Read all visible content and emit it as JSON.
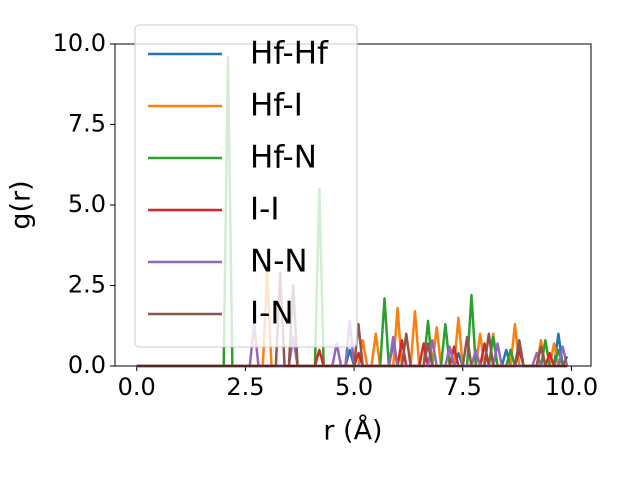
{
  "chart_data": {
    "type": "line",
    "x_label": "r (Å)",
    "y_label": "g(r)",
    "x": [
      0.0,
      0.1,
      0.2,
      0.3,
      0.4,
      0.5,
      0.6,
      0.7,
      0.8,
      0.9,
      1.0,
      1.1,
      1.2,
      1.3,
      1.4,
      1.5,
      1.6,
      1.7,
      1.8,
      1.9,
      2.0,
      2.1,
      2.2,
      2.3,
      2.4,
      2.5,
      2.6,
      2.7,
      2.8,
      2.9,
      3.0,
      3.1,
      3.2,
      3.3,
      3.4,
      3.5,
      3.6,
      3.7,
      3.8,
      3.9,
      4.0,
      4.1,
      4.2,
      4.3,
      4.4,
      4.5,
      4.6,
      4.7,
      4.8,
      4.9,
      5.0,
      5.1,
      5.2,
      5.3,
      5.4,
      5.5,
      5.6,
      5.7,
      5.8,
      5.9,
      6.0,
      6.1,
      6.2,
      6.3,
      6.4,
      6.5,
      6.6,
      6.7,
      6.8,
      6.9,
      7.0,
      7.1,
      7.2,
      7.3,
      7.4,
      7.5,
      7.6,
      7.7,
      7.8,
      7.9,
      8.0,
      8.1,
      8.2,
      8.3,
      8.4,
      8.5,
      8.6,
      8.7,
      8.8,
      8.9,
      9.0,
      9.1,
      9.2,
      9.3,
      9.4,
      9.5,
      9.6,
      9.7,
      9.8,
      9.9
    ],
    "series": [
      {
        "name": "Hf-Hf",
        "color": "#1f77b4",
        "values": [
          0,
          0,
          0,
          0,
          0,
          0,
          0,
          0,
          0,
          0,
          0,
          0,
          0,
          0,
          0,
          0,
          0,
          0,
          0,
          0,
          0,
          0,
          0,
          0,
          0,
          0,
          0,
          0,
          0,
          0,
          0,
          0,
          0,
          0,
          0,
          0,
          0,
          0,
          0,
          0,
          0,
          0,
          0,
          0,
          0,
          0,
          0,
          0,
          0,
          0.5,
          0,
          0,
          0,
          0,
          0,
          0,
          0,
          0,
          0,
          0.7,
          0,
          0,
          0,
          0,
          0,
          0,
          0,
          0,
          0,
          0,
          0,
          0,
          0,
          0,
          0.4,
          0,
          0,
          0,
          0,
          0,
          0,
          0,
          0,
          0,
          0,
          0.5,
          0,
          0,
          0,
          0,
          0,
          0,
          0,
          0,
          0,
          0,
          0,
          1.0,
          0,
          0
        ]
      },
      {
        "name": "Hf-I",
        "color": "#ff7f0e",
        "values": [
          0,
          0,
          0,
          0,
          0,
          0,
          0,
          0,
          0,
          0,
          0,
          0,
          0,
          0,
          0,
          0,
          0,
          0,
          0,
          0,
          0,
          0,
          0,
          0,
          0,
          0,
          0,
          0,
          0,
          0,
          2.9,
          0,
          0,
          0,
          0,
          0,
          0,
          0,
          0,
          0,
          0,
          0,
          0,
          0,
          0,
          0,
          0,
          0,
          0,
          0,
          0,
          0,
          0.8,
          0,
          0,
          1.0,
          0,
          0,
          0,
          0,
          1.8,
          0,
          0,
          0,
          1.7,
          0,
          0,
          0,
          0,
          1.2,
          0,
          0,
          0,
          0,
          1.5,
          0,
          0,
          0,
          0,
          1.0,
          0,
          0,
          1.0,
          0,
          0,
          0,
          0,
          1.3,
          0,
          0,
          0,
          0,
          0,
          0.8,
          0,
          0,
          0.7,
          0,
          0,
          0
        ]
      },
      {
        "name": "Hf-N",
        "color": "#2ca02c",
        "values": [
          0,
          0,
          0,
          0,
          0,
          0,
          0,
          0,
          0,
          0,
          0,
          0,
          0,
          0,
          0,
          0,
          0,
          0,
          0,
          0,
          0,
          9.6,
          0,
          0,
          0,
          0,
          0,
          0,
          0,
          0,
          0,
          0,
          0,
          0,
          0,
          0,
          0,
          0,
          0,
          0,
          0,
          0,
          5.5,
          0,
          0,
          0,
          0,
          0,
          0,
          0,
          0,
          0,
          0,
          0,
          0,
          0,
          0,
          2.1,
          0,
          0,
          0,
          0,
          0,
          0,
          0,
          0,
          0,
          1.4,
          0,
          0,
          0,
          1.3,
          0,
          0,
          0,
          0,
          0,
          2.2,
          0,
          0,
          0,
          0,
          0.9,
          0,
          0,
          0,
          0.5,
          0,
          0,
          0,
          0,
          0,
          0,
          0,
          0.8,
          0,
          0,
          0.5,
          0,
          0
        ]
      },
      {
        "name": "I-I",
        "color": "#d62728",
        "values": [
          0,
          0,
          0,
          0,
          0,
          0,
          0,
          0,
          0,
          0,
          0,
          0,
          0,
          0,
          0,
          0,
          0,
          0,
          0,
          0,
          0,
          0,
          0,
          0,
          0,
          0,
          0,
          0,
          0,
          0,
          0,
          0,
          0,
          0,
          0,
          0,
          0,
          0,
          0,
          0,
          0,
          0,
          0.5,
          0,
          0,
          0,
          0,
          0,
          0,
          0,
          0,
          0.4,
          0,
          0,
          0,
          0,
          0,
          0,
          0,
          0,
          0,
          0.8,
          0,
          0,
          0,
          0,
          0.7,
          0,
          0,
          0,
          0,
          0,
          0,
          0.6,
          0,
          0,
          0,
          0,
          0,
          0,
          0.7,
          0,
          0,
          0,
          0,
          0,
          0,
          0,
          0.5,
          0,
          0,
          0,
          0,
          0,
          0,
          0.4,
          0,
          0,
          0,
          0
        ]
      },
      {
        "name": "N-N",
        "color": "#9467bd",
        "values": [
          0,
          0,
          0,
          0,
          0,
          0,
          0,
          0,
          0,
          0,
          0,
          0,
          0,
          0,
          0,
          0,
          0,
          0,
          0,
          0,
          0,
          0,
          0,
          0,
          0,
          0,
          0,
          1.3,
          0,
          0,
          0,
          0,
          0,
          0,
          0,
          0,
          0.9,
          0,
          0,
          0,
          0,
          0,
          0,
          0,
          0,
          0,
          0.7,
          0,
          0,
          1.4,
          0,
          0,
          0,
          0,
          0,
          0,
          0,
          0,
          0,
          0.9,
          0,
          0,
          0,
          0,
          0,
          0,
          0,
          0,
          0.8,
          0,
          0,
          0,
          0.6,
          0,
          0,
          0,
          0,
          0,
          0.5,
          0,
          0,
          0,
          0,
          0.7,
          0,
          0,
          0,
          0,
          0,
          0,
          0,
          0,
          0.4,
          0,
          0,
          0,
          0,
          0,
          0.6,
          0
        ]
      },
      {
        "name": "I-N",
        "color": "#8c564b",
        "values": [
          0,
          0,
          0,
          0,
          0,
          0,
          0,
          0,
          0,
          0,
          0,
          0,
          0,
          0,
          0,
          0,
          0,
          0,
          0,
          0,
          0,
          0,
          0,
          0,
          0,
          0,
          0,
          0,
          0,
          0,
          0,
          0,
          0,
          2.9,
          0,
          0,
          2.5,
          0,
          0,
          0,
          0,
          0,
          0,
          0,
          0,
          0,
          0,
          0,
          0,
          0,
          0,
          1.3,
          0,
          0,
          0,
          0,
          0,
          0,
          0,
          0,
          0,
          0,
          1.0,
          0,
          0,
          0,
          0,
          0.7,
          0,
          0,
          0,
          0,
          0,
          0,
          0,
          0,
          0.9,
          0,
          0,
          0,
          0,
          1.0,
          0,
          0,
          0,
          0,
          0,
          0,
          0.8,
          0,
          0,
          0,
          0,
          0.6,
          0,
          0,
          0,
          0,
          0,
          0.3
        ]
      }
    ],
    "xlim": [
      -0.5,
      10.45
    ],
    "ylim": [
      0,
      10
    ],
    "xticks": [
      {
        "value": 0,
        "label": "0.0"
      },
      2.5,
      {
        "value": 5,
        "label": "5.0"
      },
      7.5,
      {
        "value": 10,
        "label": "10.0"
      }
    ],
    "yticks": [
      {
        "value": 0,
        "label": "0.0"
      },
      2.5,
      {
        "value": 5,
        "label": "5.0"
      },
      7.5,
      {
        "value": 10,
        "label": "10.0"
      }
    ],
    "legend": "upper left"
  }
}
